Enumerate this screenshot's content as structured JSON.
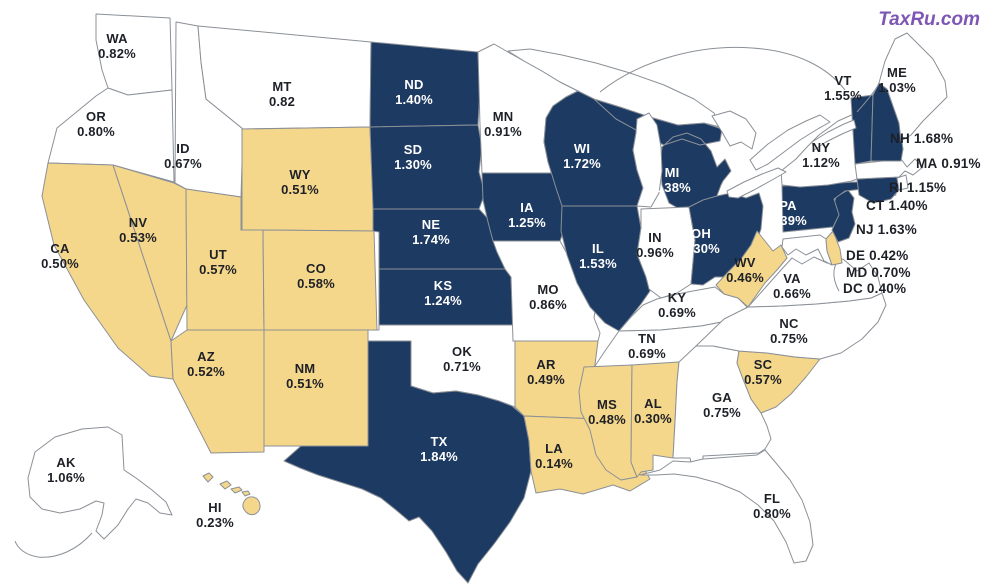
{
  "watermark": {
    "text": "TaxRu.com",
    "color": "#7e57b5"
  },
  "map": {
    "region": "United States choropleth of state tax rates",
    "colors": {
      "high": "#1d3a62",
      "mid": "#ffffff",
      "low": "#f5d78b",
      "border": "#8b9097",
      "water": "#ffffff",
      "label_dark": "#1d2026",
      "label_light": "#ffffff"
    },
    "states": [
      {
        "abbr": "WA",
        "value": "0.82%",
        "category": "mid"
      },
      {
        "abbr": "OR",
        "value": "0.80%",
        "category": "mid"
      },
      {
        "abbr": "CA",
        "value": "0.50%",
        "category": "low"
      },
      {
        "abbr": "NV",
        "value": "0.53%",
        "category": "low"
      },
      {
        "abbr": "ID",
        "value": "0.67%",
        "category": "mid"
      },
      {
        "abbr": "MT",
        "value": "0.82",
        "category": "mid"
      },
      {
        "abbr": "WY",
        "value": "0.51%",
        "category": "low"
      },
      {
        "abbr": "UT",
        "value": "0.57%",
        "category": "low"
      },
      {
        "abbr": "CO",
        "value": "0.58%",
        "category": "low"
      },
      {
        "abbr": "AZ",
        "value": "0.52%",
        "category": "low"
      },
      {
        "abbr": "NM",
        "value": "0.51%",
        "category": "low"
      },
      {
        "abbr": "AK",
        "value": "1.06%",
        "category": "mid"
      },
      {
        "abbr": "HI",
        "value": "0.23%",
        "category": "low"
      },
      {
        "abbr": "ND",
        "value": "1.40%",
        "category": "high"
      },
      {
        "abbr": "SD",
        "value": "1.30%",
        "category": "high"
      },
      {
        "abbr": "NE",
        "value": "1.74%",
        "category": "high"
      },
      {
        "abbr": "KS",
        "value": "1.24%",
        "category": "high"
      },
      {
        "abbr": "OK",
        "value": "0.71%",
        "category": "mid"
      },
      {
        "abbr": "TX",
        "value": "1.84%",
        "category": "high"
      },
      {
        "abbr": "MN",
        "value": "0.91%",
        "category": "mid"
      },
      {
        "abbr": "IA",
        "value": "1.25%",
        "category": "high"
      },
      {
        "abbr": "MO",
        "value": "0.86%",
        "category": "mid"
      },
      {
        "abbr": "AR",
        "value": "0.49%",
        "category": "low"
      },
      {
        "abbr": "LA",
        "value": "0.14%",
        "category": "low"
      },
      {
        "abbr": "WI",
        "value": "1.72%",
        "category": "high"
      },
      {
        "abbr": "IL",
        "value": "1.53%",
        "category": "high"
      },
      {
        "abbr": "MI",
        "value": "1.38%",
        "category": "high"
      },
      {
        "abbr": "IN",
        "value": "0.96%",
        "category": "mid"
      },
      {
        "abbr": "OH",
        "value": "1.30%",
        "category": "high"
      },
      {
        "abbr": "KY",
        "value": "0.69%",
        "category": "mid"
      },
      {
        "abbr": "TN",
        "value": "0.69%",
        "category": "mid"
      },
      {
        "abbr": "MS",
        "value": "0.48%",
        "category": "low"
      },
      {
        "abbr": "AL",
        "value": "0.30%",
        "category": "low"
      },
      {
        "abbr": "GA",
        "value": "0.75%",
        "category": "mid"
      },
      {
        "abbr": "FL",
        "value": "0.80%",
        "category": "mid"
      },
      {
        "abbr": "SC",
        "value": "0.57%",
        "category": "low"
      },
      {
        "abbr": "NC",
        "value": "0.75%",
        "category": "mid"
      },
      {
        "abbr": "VA",
        "value": "0.66%",
        "category": "mid"
      },
      {
        "abbr": "WV",
        "value": "0.46%",
        "category": "low"
      },
      {
        "abbr": "MD",
        "value": "0.70%",
        "category": "mid"
      },
      {
        "abbr": "DE",
        "value": "0.42%",
        "category": "low"
      },
      {
        "abbr": "DC",
        "value": "0.40%",
        "category": "low"
      },
      {
        "abbr": "NJ",
        "value": "1.63%",
        "category": "high"
      },
      {
        "abbr": "PA",
        "value": "1.39%",
        "category": "high"
      },
      {
        "abbr": "NY",
        "value": "1.12%",
        "category": "mid"
      },
      {
        "abbr": "CT",
        "value": "1.40%",
        "category": "high"
      },
      {
        "abbr": "RI",
        "value": "1.15%",
        "category": "mid"
      },
      {
        "abbr": "MA",
        "value": "0.91%",
        "category": "mid"
      },
      {
        "abbr": "VT",
        "value": "1.55%",
        "category": "high"
      },
      {
        "abbr": "NH",
        "value": "1.68%",
        "category": "high"
      },
      {
        "abbr": "ME",
        "value": "1.03%",
        "category": "mid"
      }
    ]
  }
}
